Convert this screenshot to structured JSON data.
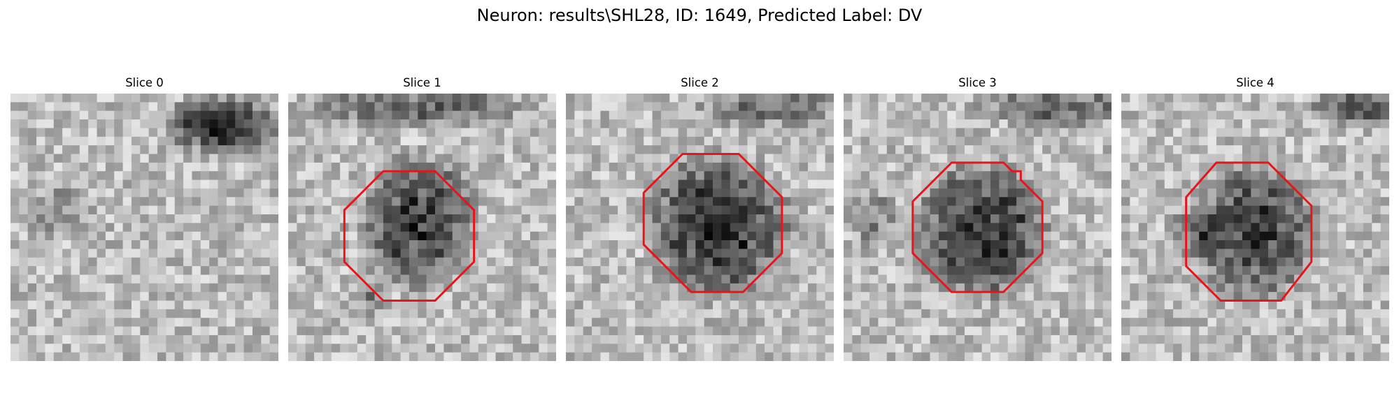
{
  "figure": {
    "title": "Neuron: results\\SHL28, ID: 1649, Predicted Label: DV"
  },
  "panels": [
    {
      "title": "Slice 0",
      "contour_color": "#e8141a",
      "has_contour": false
    },
    {
      "title": "Slice 1",
      "contour_color": "#e8141a",
      "has_contour": true
    },
    {
      "title": "Slice 2",
      "contour_color": "#e8141a",
      "has_contour": true
    },
    {
      "title": "Slice 3",
      "contour_color": "#e8141a",
      "has_contour": true
    },
    {
      "title": "Slice 4",
      "contour_color": "#e8141a",
      "has_contour": true
    }
  ]
}
